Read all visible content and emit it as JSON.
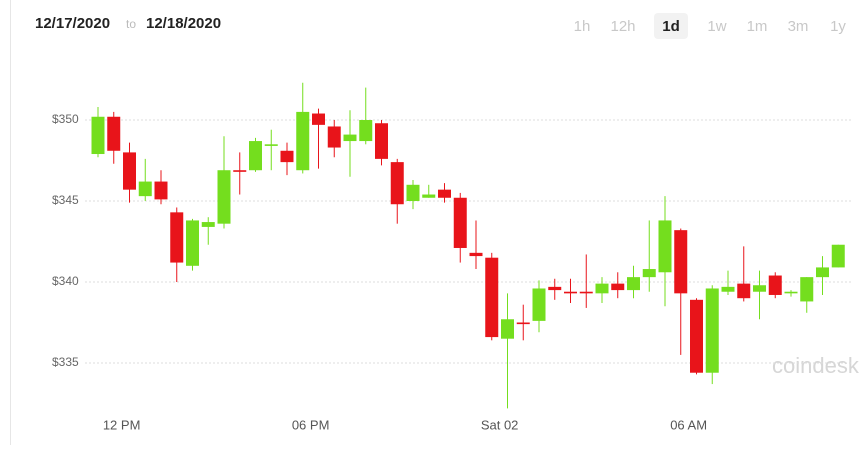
{
  "header": {
    "from": "12/17/2020",
    "to": "to",
    "until": "12/18/2020",
    "ranges": [
      "1h",
      "12h",
      "1d",
      "1w",
      "1m",
      "3m",
      "1y"
    ],
    "selected_range": "1d"
  },
  "watermark": "coindesk",
  "chart_data": {
    "type": "candlestick",
    "categories": [
      null,
      null,
      "12 PM",
      null,
      null,
      null,
      null,
      null,
      null,
      null,
      null,
      null,
      null,
      null,
      "06 PM",
      null,
      null,
      null,
      null,
      null,
      null,
      null,
      null,
      null,
      null,
      null,
      "Sat 02",
      null,
      null,
      null,
      null,
      null,
      null,
      null,
      null,
      null,
      null,
      null,
      "06 AM",
      null,
      null,
      null,
      null,
      null,
      null,
      null,
      null,
      null
    ],
    "open": [
      347.9,
      350.2,
      348.0,
      345.3,
      346.2,
      344.3,
      341.0,
      343.4,
      343.6,
      346.9,
      346.9,
      348.4,
      348.1,
      346.9,
      350.4,
      349.6,
      348.7,
      348.7,
      349.8,
      347.4,
      345.0,
      345.2,
      345.7,
      345.2,
      341.8,
      341.5,
      336.5,
      337.5,
      337.6,
      339.7,
      339.4,
      339.4,
      339.3,
      339.9,
      339.5,
      340.3,
      340.6,
      343.2,
      338.9,
      334.4,
      339.4,
      339.9,
      339.4,
      340.4,
      339.3,
      338.8,
      340.3,
      340.9
    ],
    "high": [
      350.8,
      350.5,
      348.6,
      347.6,
      346.9,
      344.6,
      343.9,
      344.0,
      349.0,
      348.0,
      348.9,
      349.4,
      348.6,
      352.3,
      350.7,
      350.0,
      350.6,
      352.0,
      350.0,
      347.6,
      346.3,
      346.0,
      346.1,
      345.5,
      343.8,
      341.8,
      339.3,
      338.6,
      340.1,
      340.2,
      340.2,
      341.7,
      340.3,
      340.6,
      341.0,
      343.8,
      345.3,
      343.3,
      339.0,
      339.8,
      340.7,
      342.2,
      340.7,
      340.6,
      339.5,
      340.3,
      341.6,
      342.3
    ],
    "low": [
      347.7,
      347.3,
      344.9,
      345.0,
      344.8,
      340.0,
      340.7,
      342.3,
      343.3,
      345.4,
      346.8,
      346.9,
      346.6,
      346.7,
      347.0,
      347.7,
      346.5,
      348.5,
      347.2,
      343.6,
      344.5,
      345.2,
      344.9,
      341.2,
      340.8,
      336.4,
      332.2,
      336.4,
      336.9,
      338.9,
      338.7,
      338.4,
      338.7,
      339.0,
      339.0,
      339.4,
      338.5,
      335.5,
      334.3,
      333.7,
      339.2,
      338.8,
      337.7,
      339.0,
      339.1,
      338.1,
      339.2,
      340.9
    ],
    "close": [
      350.2,
      348.1,
      345.7,
      346.2,
      345.1,
      341.2,
      343.8,
      343.7,
      346.9,
      346.8,
      348.7,
      348.5,
      347.4,
      350.5,
      349.7,
      348.3,
      349.1,
      350.0,
      347.6,
      344.8,
      346.0,
      345.4,
      345.2,
      342.1,
      341.6,
      336.6,
      337.7,
      337.4,
      339.6,
      339.5,
      339.3,
      339.3,
      339.9,
      339.5,
      340.3,
      340.8,
      343.8,
      339.3,
      334.4,
      339.6,
      339.7,
      339.0,
      339.8,
      339.2,
      339.4,
      340.3,
      340.9,
      342.3
    ],
    "up_color": "#74de1e",
    "down_color": "#e8141a",
    "ylim": [
      332,
      353
    ],
    "yticks": [
      {
        "value": 335,
        "label": "$335"
      },
      {
        "value": 340,
        "label": "$340"
      },
      {
        "value": 345,
        "label": "$345"
      },
      {
        "value": 350,
        "label": "$350"
      }
    ],
    "grid": true
  }
}
